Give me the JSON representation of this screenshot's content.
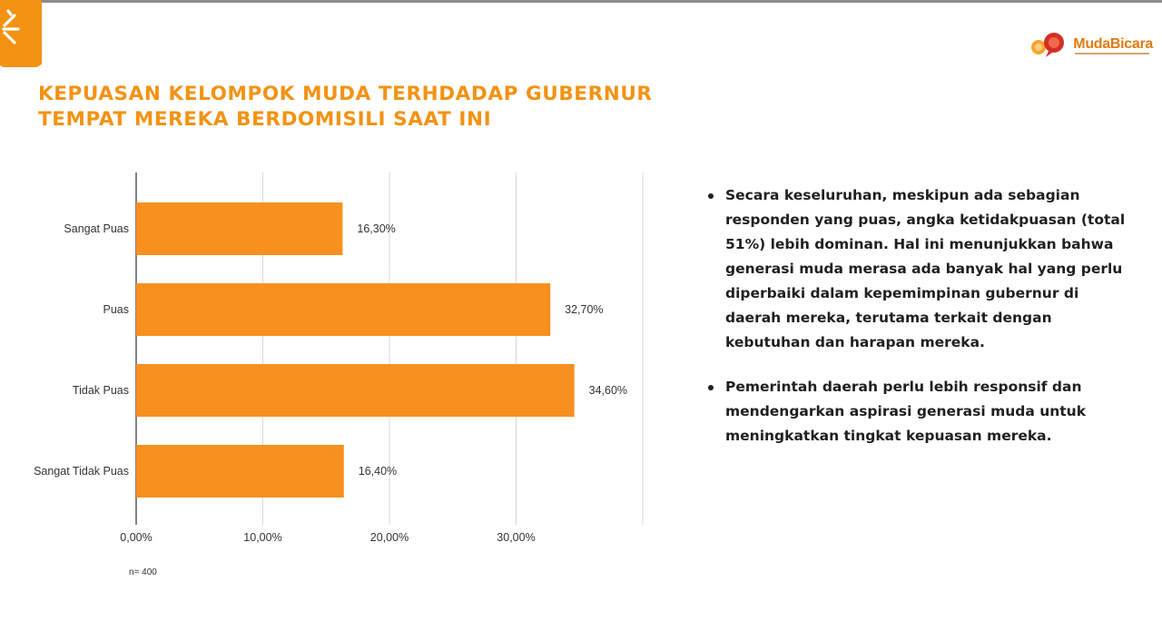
{
  "brand": {
    "name": "MudaBicara"
  },
  "title_lines": [
    "KEPUASAN KELOMPOK MUDA TERHDADAP GUBERNUR",
    "TEMPAT MEREKA BERDOMISILI SAAT INI"
  ],
  "colors": {
    "accent": "#f39212",
    "bar": "#f7901e",
    "text": "#1f1f1f",
    "grid": "#d9d9d9"
  },
  "chart_data": {
    "type": "bar",
    "orientation": "horizontal",
    "categories": [
      "Sangat Puas",
      "Puas",
      "Tidak Puas",
      "Sangat Tidak Puas"
    ],
    "values": [
      16.3,
      32.7,
      34.6,
      16.4
    ],
    "value_labels": [
      "16,30%",
      "32,70%",
      "34,60%",
      "16,40%"
    ],
    "x_ticks": [
      0,
      10,
      20,
      30
    ],
    "x_tick_labels": [
      "0,00%",
      "10,00%",
      "20,00%",
      "30,00%"
    ],
    "xlim": [
      0,
      40
    ],
    "grid": true,
    "note": "n= 400"
  },
  "bullets": [
    "Secara keseluruhan, meskipun ada sebagian responden yang puas, angka ketidakpuasan (total 51%) lebih dominan. Hal ini menunjukkan bahwa generasi muda merasa ada banyak hal yang perlu diperbaiki dalam kepemimpinan gubernur di daerah mereka, terutama terkait dengan kebutuhan dan harapan mereka.",
    "Pemerintah daerah perlu lebih responsif dan mendengarkan aspirasi generasi muda untuk meningkatkan tingkat kepuasan mereka."
  ]
}
